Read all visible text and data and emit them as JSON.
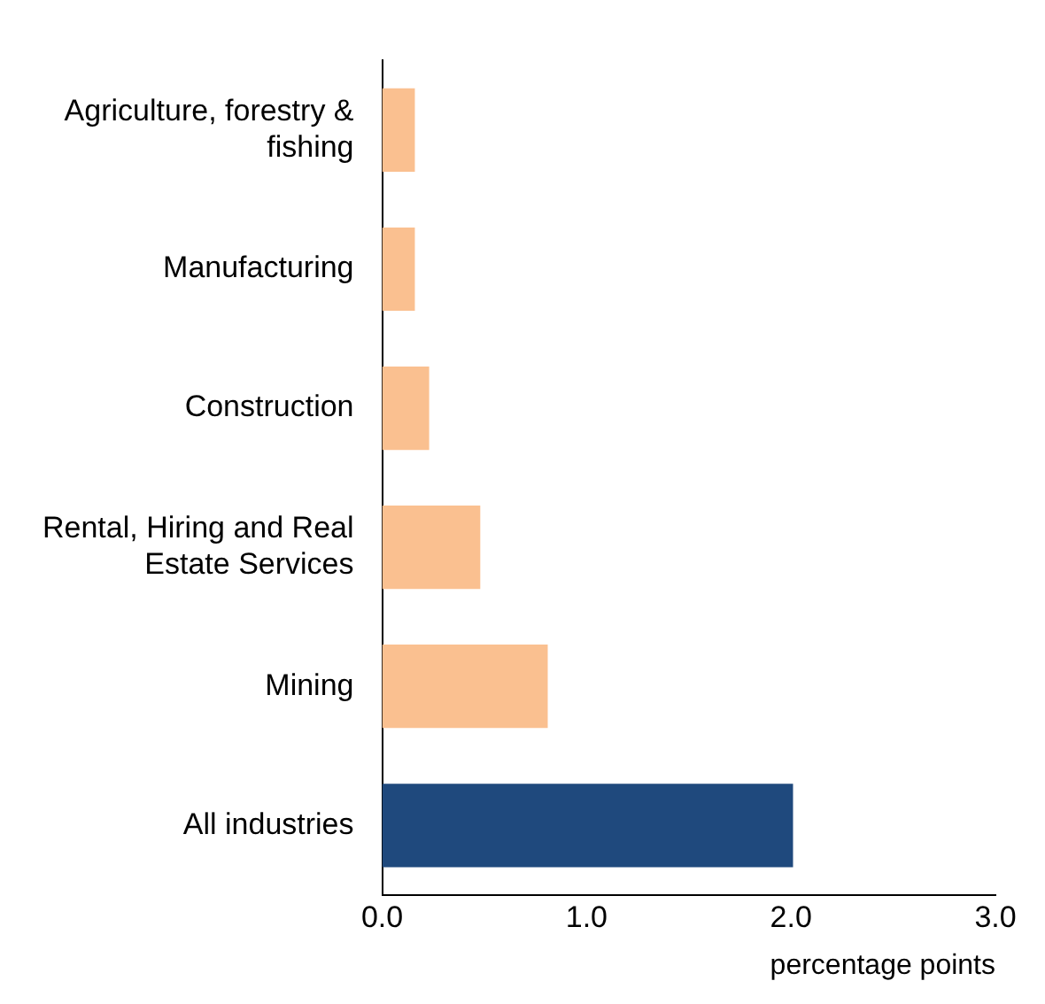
{
  "chart_data": {
    "type": "bar",
    "orientation": "horizontal",
    "xlabel": "percentage points",
    "categories": [
      "Agriculture, forestry & fishing",
      "Manufacturing",
      "Construction",
      "Rental, Hiring and Real Estate Services",
      "Mining",
      "All industries"
    ],
    "values": [
      0.16,
      0.16,
      0.23,
      0.48,
      0.81,
      2.01
    ],
    "colors": [
      "#fac090",
      "#fac090",
      "#fac090",
      "#fac090",
      "#fac090",
      "#1f497d"
    ],
    "xlim": [
      0,
      3
    ],
    "xticks": [
      {
        "value": 0,
        "label": "0.0"
      },
      {
        "value": 1,
        "label": "1.0"
      },
      {
        "value": 2,
        "label": "2.0"
      },
      {
        "value": 3,
        "label": "3.0"
      }
    ],
    "grid": false,
    "legend": false
  }
}
